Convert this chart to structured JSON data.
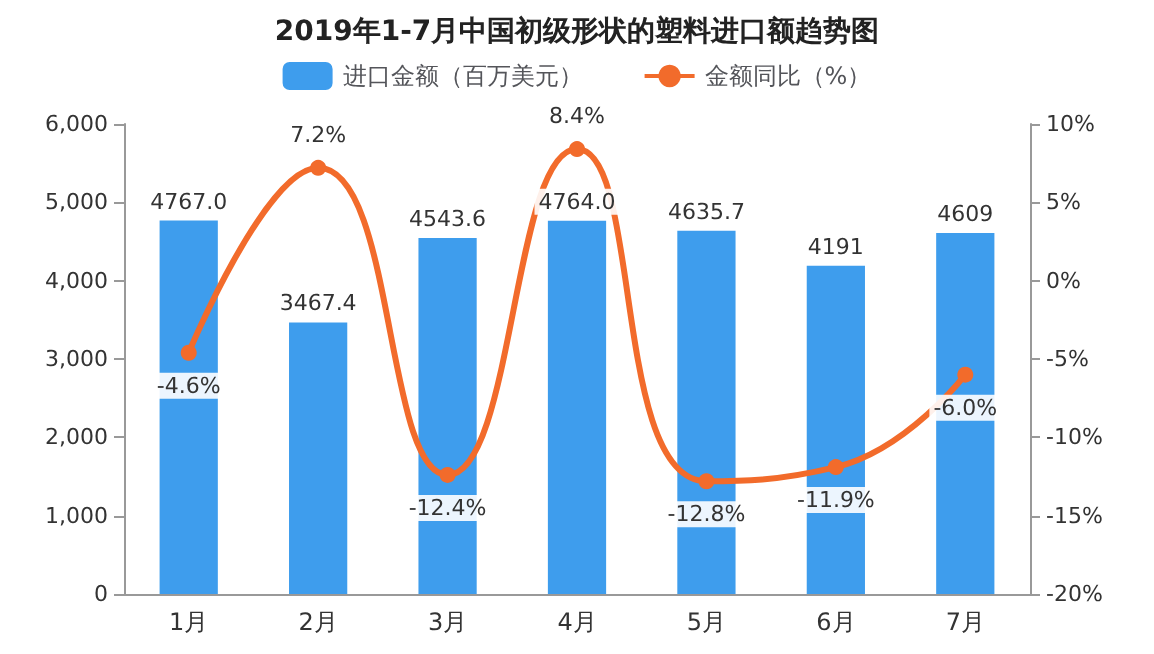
{
  "chart_data": {
    "type": "bar",
    "title": "2019年1-7月中国初级形状的塑料进口额趋势图",
    "categories": [
      "1月",
      "2月",
      "3月",
      "4月",
      "5月",
      "6月",
      "7月"
    ],
    "series": [
      {
        "name": "进口金额（百万美元）",
        "color": "#3e9ded",
        "values": [
          4767.0,
          3467.4,
          4543.6,
          4764.0,
          4635.7,
          4191,
          4609
        ],
        "value_labels": [
          "4767.0",
          "3467.4",
          "4543.6",
          "4764.0",
          "4635.7",
          "4191",
          "4609"
        ]
      },
      {
        "name": "金额同比（%）",
        "type": "line",
        "axis": "y2",
        "color": "#f26b2b",
        "values": [
          -4.6,
          7.2,
          -12.4,
          8.4,
          -12.8,
          -11.9,
          -6.0
        ],
        "value_labels": [
          "-4.6%",
          "7.2%",
          "-12.4%",
          "8.4%",
          "-12.8%",
          "-11.9%",
          "-6.0%"
        ]
      }
    ],
    "ylim": [
      0,
      6000
    ],
    "yticks": [
      {
        "value": 0,
        "label": "0"
      },
      {
        "value": 1000,
        "label": "1,000"
      },
      {
        "value": 2000,
        "label": "2,000"
      },
      {
        "value": 3000,
        "label": "3,000"
      },
      {
        "value": 4000,
        "label": "4,000"
      },
      {
        "value": 5000,
        "label": "5,000"
      },
      {
        "value": 6000,
        "label": "6,000"
      }
    ],
    "y2lim": [
      -20,
      10
    ],
    "y2ticks": [
      {
        "value": -20,
        "label": "-20%"
      },
      {
        "value": -15,
        "label": "-15%"
      },
      {
        "value": -10,
        "label": "-10%"
      },
      {
        "value": -5,
        "label": "-5%"
      },
      {
        "value": 0,
        "label": "0%"
      },
      {
        "value": 5,
        "label": "5%"
      },
      {
        "value": 10,
        "label": "10%"
      }
    ],
    "legend": "top",
    "marker": "circle",
    "grid": false
  }
}
